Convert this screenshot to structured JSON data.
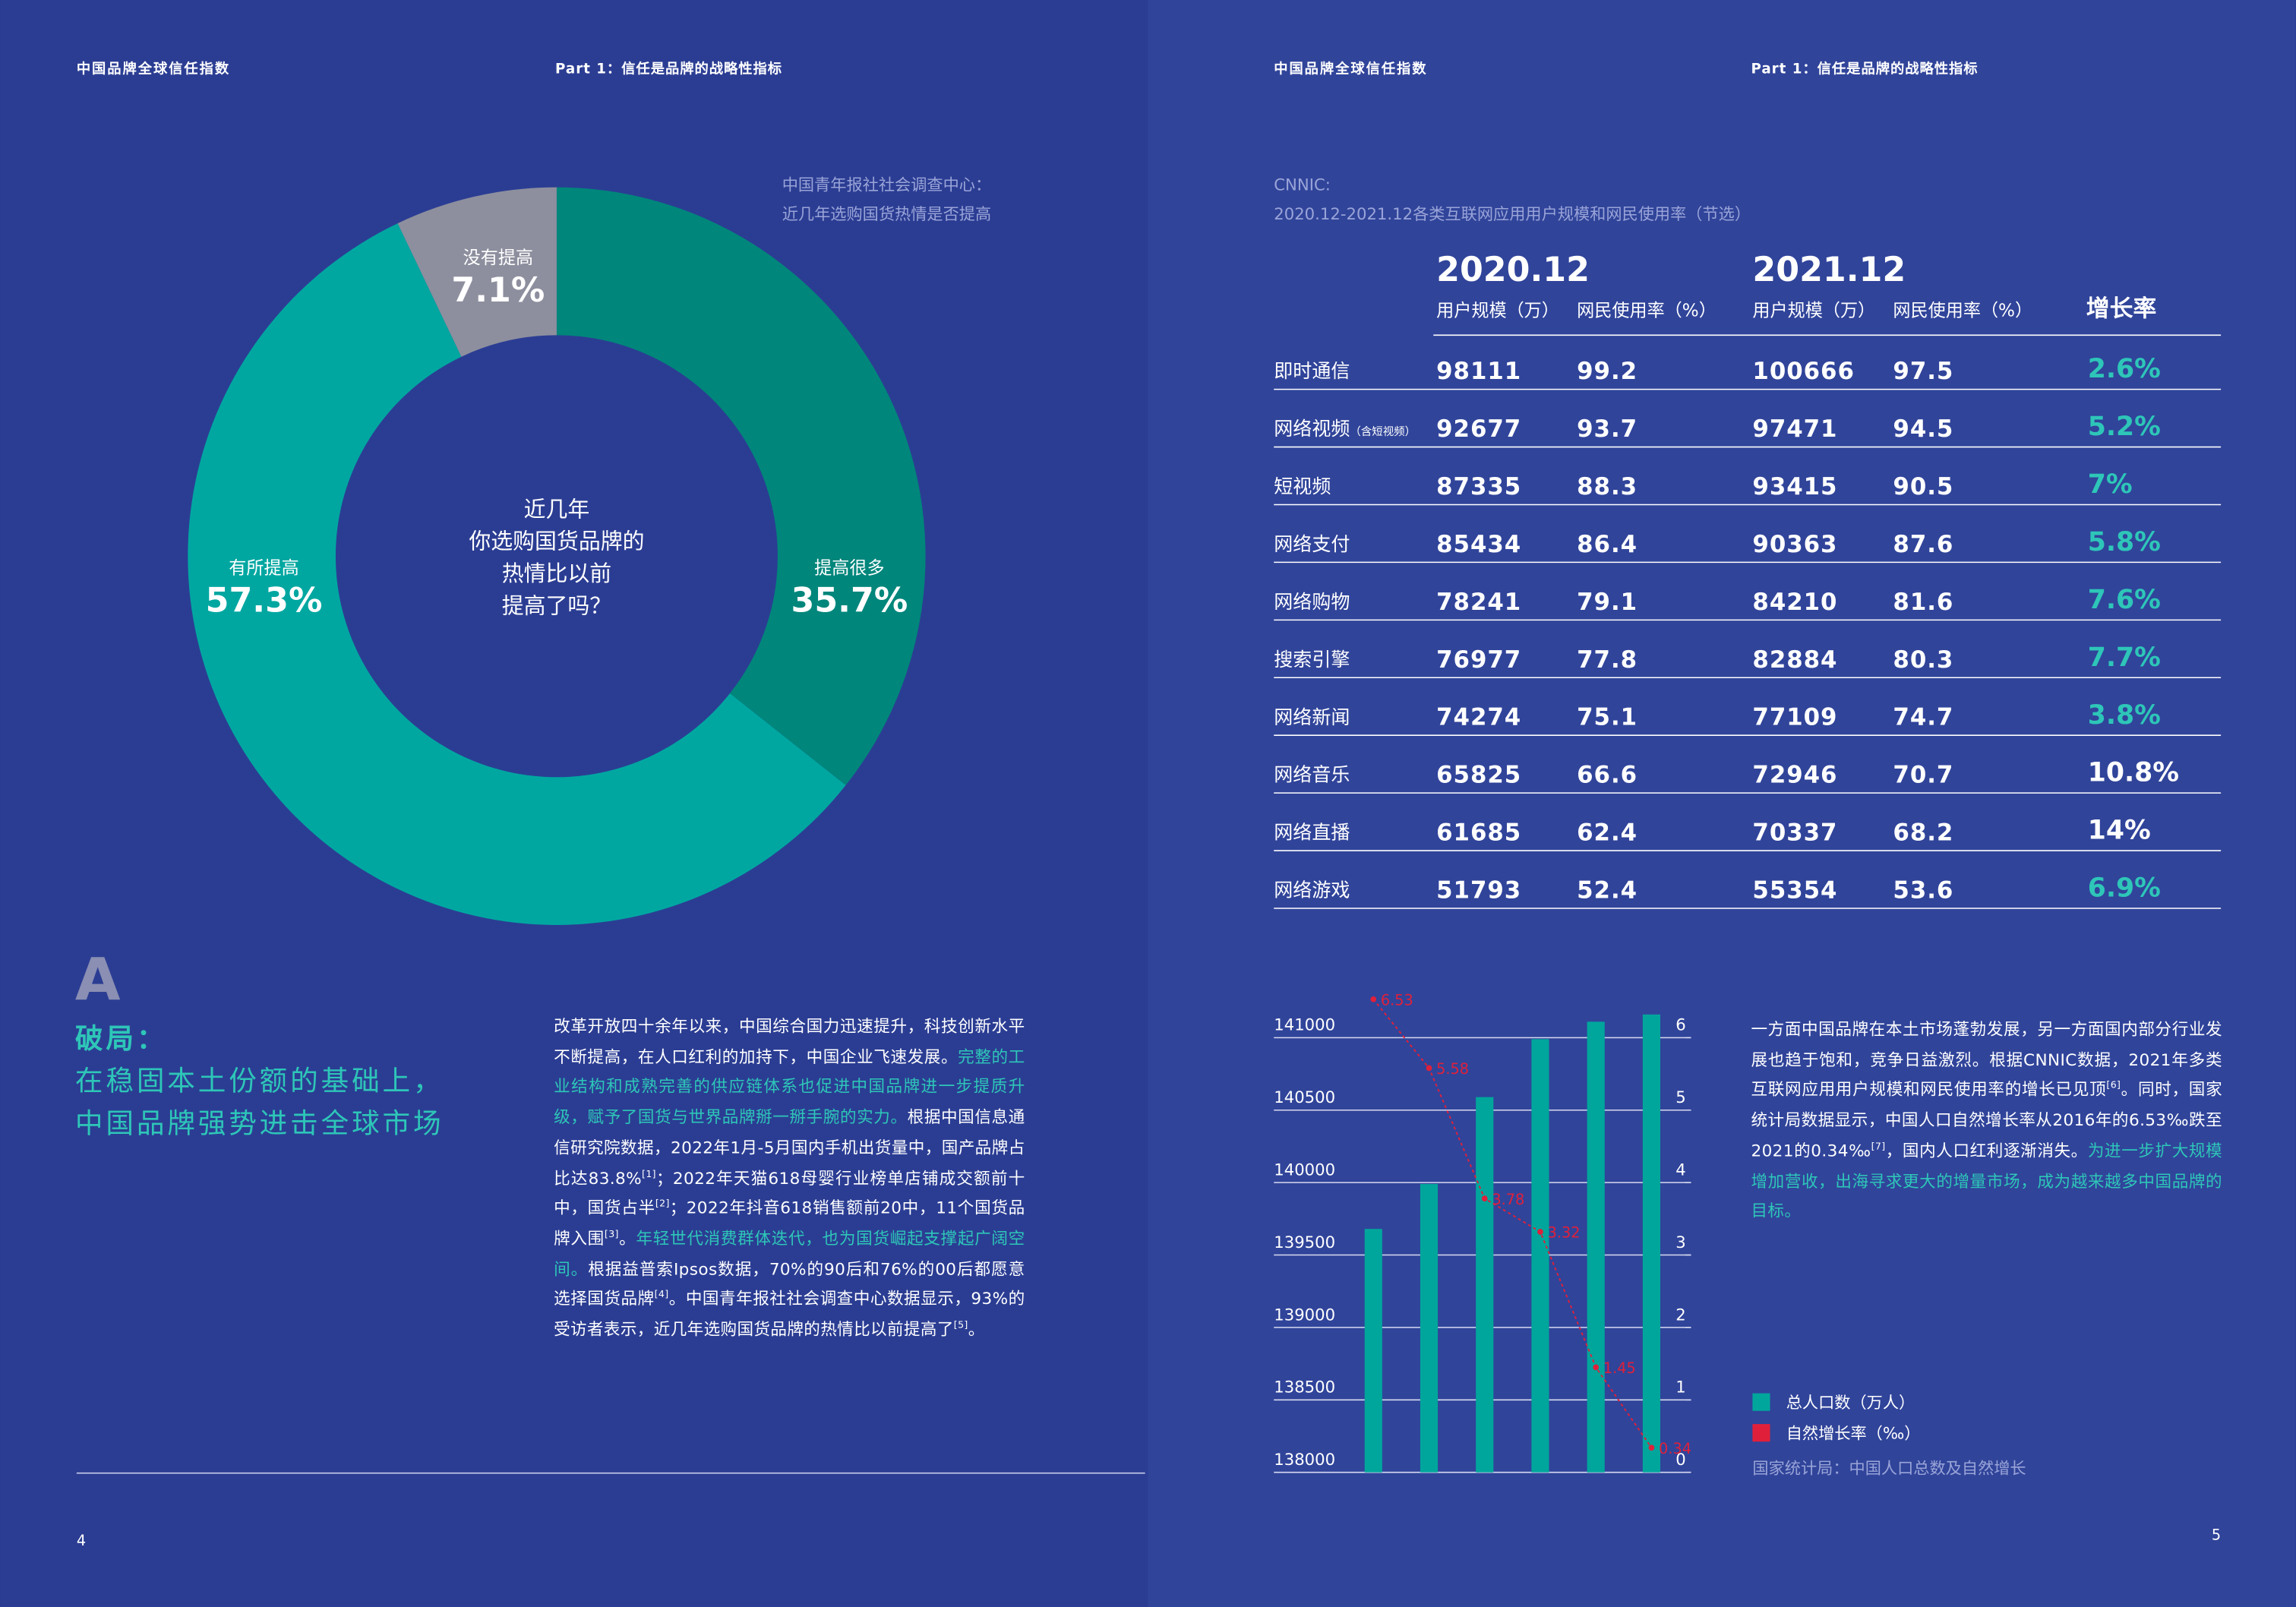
{
  "header": {
    "left": {
      "title": "中国品牌全球信任指数",
      "part": "Part 1：信任是品牌的战略性指标"
    },
    "right": {
      "title": "中国品牌全球信任指数",
      "part": "Part 1：信任是品牌的战略性指标"
    }
  },
  "donut": {
    "type": "pie",
    "source": [
      "中国青年报社社会调查中心：",
      "近几年选购国货热情是否提高"
    ],
    "center_text": [
      "近几年",
      "你选购国货品牌的",
      "热情比以前",
      "提高了吗？"
    ],
    "categories": [
      "提高很多",
      "有所提高",
      "没有提高"
    ],
    "values": [
      35.7,
      57.3,
      7.1
    ],
    "value_labels": [
      "35.7%",
      "57.3%",
      "7.1%"
    ],
    "colors": [
      "#00867b",
      "#00a7a1",
      "#8d8f9e"
    ]
  },
  "section": {
    "letter": "A",
    "title": "破局：",
    "subtitle": [
      "在稳固本土份额的基础上，",
      "中国品牌强势进击全球市场"
    ]
  },
  "left_paragraph": [
    {
      "text": "改革开放四十余年以来，中国综合国力迅速提升，科技创新水平不断提高，在人口红利的加持下，中国企业飞速发展。",
      "style": "plain"
    },
    {
      "text": "完整的工业结构和成熟完善的供应链体系也促进中国品牌进一步提质升级，赋予了国货与世界品牌掰一掰手腕的实力。",
      "style": "highlight"
    },
    {
      "text": "根据中国信息通信研究院数据，2022年1月-5月国内手机出货量中，国产品牌占比达83.8%",
      "style": "plain"
    },
    {
      "text": "[1]",
      "style": "sup"
    },
    {
      "text": "；2022年天猫618母婴行业榜单店铺成交额前十中，国货占半",
      "style": "plain"
    },
    {
      "text": "[2]",
      "style": "sup"
    },
    {
      "text": "；2022年抖音618销售额前20中，11个国货品牌入围",
      "style": "plain"
    },
    {
      "text": "[3]",
      "style": "sup"
    },
    {
      "text": "。",
      "style": "plain"
    },
    {
      "text": "年轻世代消费群体迭代，也为国货崛起支撑起广阔空间。",
      "style": "highlight"
    },
    {
      "text": "根据益普索Ipsos数据，70%的90后和76%的00后都愿意选择国货品牌",
      "style": "plain"
    },
    {
      "text": "[4]",
      "style": "sup"
    },
    {
      "text": "。中国青年报社社会调查中心数据显示，93%的受访者表示，近几年选购国货品牌的热情比以前提高了",
      "style": "plain"
    },
    {
      "text": "[5]",
      "style": "sup"
    },
    {
      "text": "。",
      "style": "plain"
    }
  ],
  "table": {
    "source": [
      "CNNIC:",
      "2020.12-2021.12各类互联网应用用户规模和网民使用率（节选）"
    ],
    "periods": [
      "2020.12",
      "2021.12"
    ],
    "columns": [
      "用户规模（万）",
      "网民使用率（%）"
    ],
    "growth_header": "增长率",
    "rows": [
      {
        "name": "即时通信",
        "users_2020": 98111,
        "rate_2020": 99.2,
        "users_2021": 100666,
        "rate_2021": 97.5,
        "growth": 2.6,
        "growth_label": "2.6%",
        "growth_color": "#2ec6b8"
      },
      {
        "name": "网络视频",
        "note": "（含短视频）",
        "users_2020": 92677,
        "rate_2020": 93.7,
        "users_2021": 97471,
        "rate_2021": 94.5,
        "growth": 5.2,
        "growth_label": "5.2%",
        "growth_color": "#2ec6b8"
      },
      {
        "name": "短视频",
        "users_2020": 87335,
        "rate_2020": 88.3,
        "users_2021": 93415,
        "rate_2021": 90.5,
        "growth": 7,
        "growth_label": "7%",
        "growth_color": "#2ec6b8"
      },
      {
        "name": "网络支付",
        "users_2020": 85434,
        "rate_2020": 86.4,
        "users_2021": 90363,
        "rate_2021": 87.6,
        "growth": 5.8,
        "growth_label": "5.8%",
        "growth_color": "#2ec6b8"
      },
      {
        "name": "网络购物",
        "users_2020": 78241,
        "rate_2020": 79.1,
        "users_2021": 84210,
        "rate_2021": 81.6,
        "growth": 7.6,
        "growth_label": "7.6%",
        "growth_color": "#2ec6b8"
      },
      {
        "name": "搜索引擎",
        "users_2020": 76977,
        "rate_2020": 77.8,
        "users_2021": 82884,
        "rate_2021": 80.3,
        "growth": 7.7,
        "growth_label": "7.7%",
        "growth_color": "#2ec6b8"
      },
      {
        "name": "网络新闻",
        "users_2020": 74274,
        "rate_2020": 75.1,
        "users_2021": 77109,
        "rate_2021": 74.7,
        "growth": 3.8,
        "growth_label": "3.8%",
        "growth_color": "#2ec6b8"
      },
      {
        "name": "网络音乐",
        "users_2020": 65825,
        "rate_2020": 66.6,
        "users_2021": 72946,
        "rate_2021": 70.7,
        "growth": 10.8,
        "growth_label": "10.8%",
        "growth_color": "#ffffff"
      },
      {
        "name": "网络直播",
        "users_2020": 61685,
        "rate_2020": 62.4,
        "users_2021": 70337,
        "rate_2021": 68.2,
        "growth": 14,
        "growth_label": "14%",
        "growth_color": "#ffffff"
      },
      {
        "name": "网络游戏",
        "users_2020": 51793,
        "rate_2020": 52.4,
        "users_2021": 55354,
        "rate_2021": 53.6,
        "growth": 6.9,
        "growth_label": "6.9%",
        "growth_color": "#2ec6b8"
      }
    ]
  },
  "population_chart": {
    "type": "bar_line",
    "series": [
      {
        "name": "总人口数（万人）",
        "color": "#00a69c",
        "values": [
          139680,
          139990,
          140590,
          140990,
          141110,
          141160
        ]
      },
      {
        "name": "自然增长率（‰）",
        "color": "#e0203a",
        "axis": "y2",
        "values": [
          6.53,
          5.58,
          3.78,
          3.32,
          1.45,
          0.34
        ]
      }
    ],
    "ylim": [
      138000,
      141000
    ],
    "yticks": [
      138000,
      138500,
      139000,
      139500,
      140000,
      140500,
      141000
    ],
    "y2lim": [
      0,
      6
    ],
    "y2ticks": [
      0,
      1,
      2,
      3,
      4,
      5,
      6
    ],
    "grid": true,
    "source": "国家统计局：中国人口总数及自然增长"
  },
  "right_paragraph": [
    {
      "text": "一方面中国品牌在本土市场蓬勃发展，另一方面国内部分行业发展也趋于饱和，竞争日益激烈。根据CNNIC数据，2021年多类互联网应用用户规模和网民使用率的增长已见顶",
      "style": "plain"
    },
    {
      "text": "[6]",
      "style": "sup"
    },
    {
      "text": "。同时，国家统计局数据显示，中国人口自然增长率从2016年的6.53‰跌至2021的0.34‰",
      "style": "plain"
    },
    {
      "text": "[7]",
      "style": "sup"
    },
    {
      "text": "，国内人口红利逐渐消失。",
      "style": "plain"
    },
    {
      "text": "为进一步扩大规模增加营收，出海寻求更大的增量市场，成为越来越多中国品牌的目标。",
      "style": "highlight"
    }
  ],
  "page_numbers": [
    4,
    5
  ]
}
